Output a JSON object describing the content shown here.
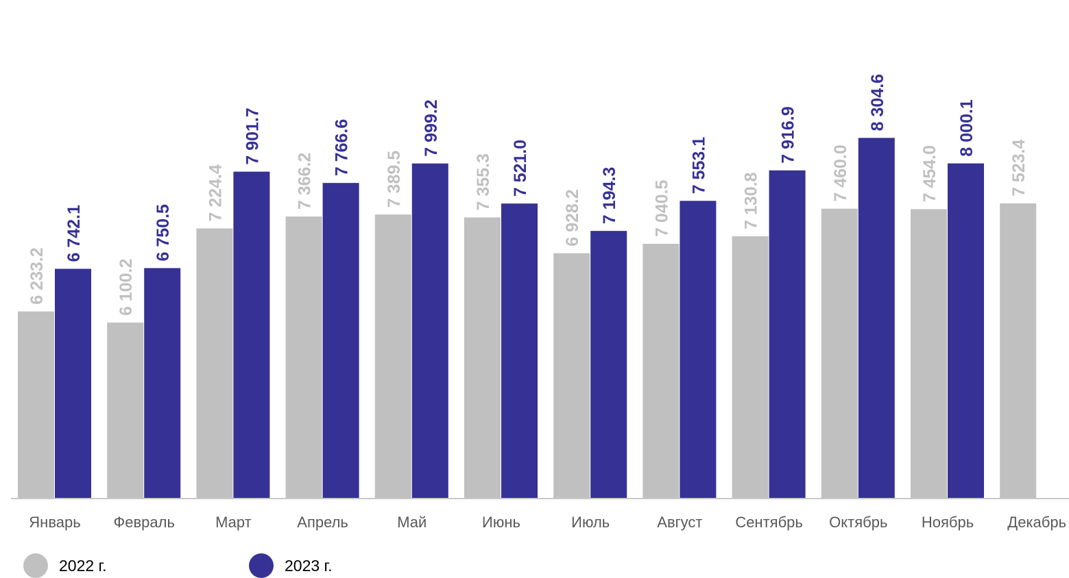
{
  "chart_data": {
    "type": "bar",
    "categories": [
      "Январь",
      "Февраль",
      "Март",
      "Апрель",
      "Май",
      "Июнь",
      "Июль",
      "Август",
      "Сентябрь",
      "Октябрь",
      "Ноябрь",
      "Декабрь"
    ],
    "series": [
      {
        "name": "2022 г.",
        "color": "#c0c0c0",
        "values": [
          6233.2,
          6100.2,
          7224.4,
          7366.2,
          7389.5,
          7355.3,
          6928.2,
          7040.5,
          7130.8,
          7460.0,
          7454.0,
          7523.4
        ],
        "labels": [
          "6 233.2",
          "6 100.2",
          "7 224.4",
          "7 366.2",
          "7 389.5",
          "7 355.3",
          "6 928.2",
          "7 040.5",
          "7 130.8",
          "7 460.0",
          "7 454.0",
          "7 523.4"
        ]
      },
      {
        "name": "2023 г.",
        "color": "#363194",
        "values": [
          6742.1,
          6750.5,
          7901.7,
          7766.6,
          7999.2,
          7521.0,
          7194.3,
          7553.1,
          7916.9,
          8304.6,
          8000.1,
          null
        ],
        "labels": [
          "6 742.1",
          "6 750.5",
          "7 901.7",
          "7 766.6",
          "7 999.2",
          "7 521.0",
          "7 194.3",
          "7 553.1",
          "7 916.9",
          "8 304.6",
          "8 000.1",
          ""
        ]
      }
    ],
    "ylim": [
      4000,
      8700
    ],
    "grid": false,
    "legend_position": "bottom-left"
  }
}
